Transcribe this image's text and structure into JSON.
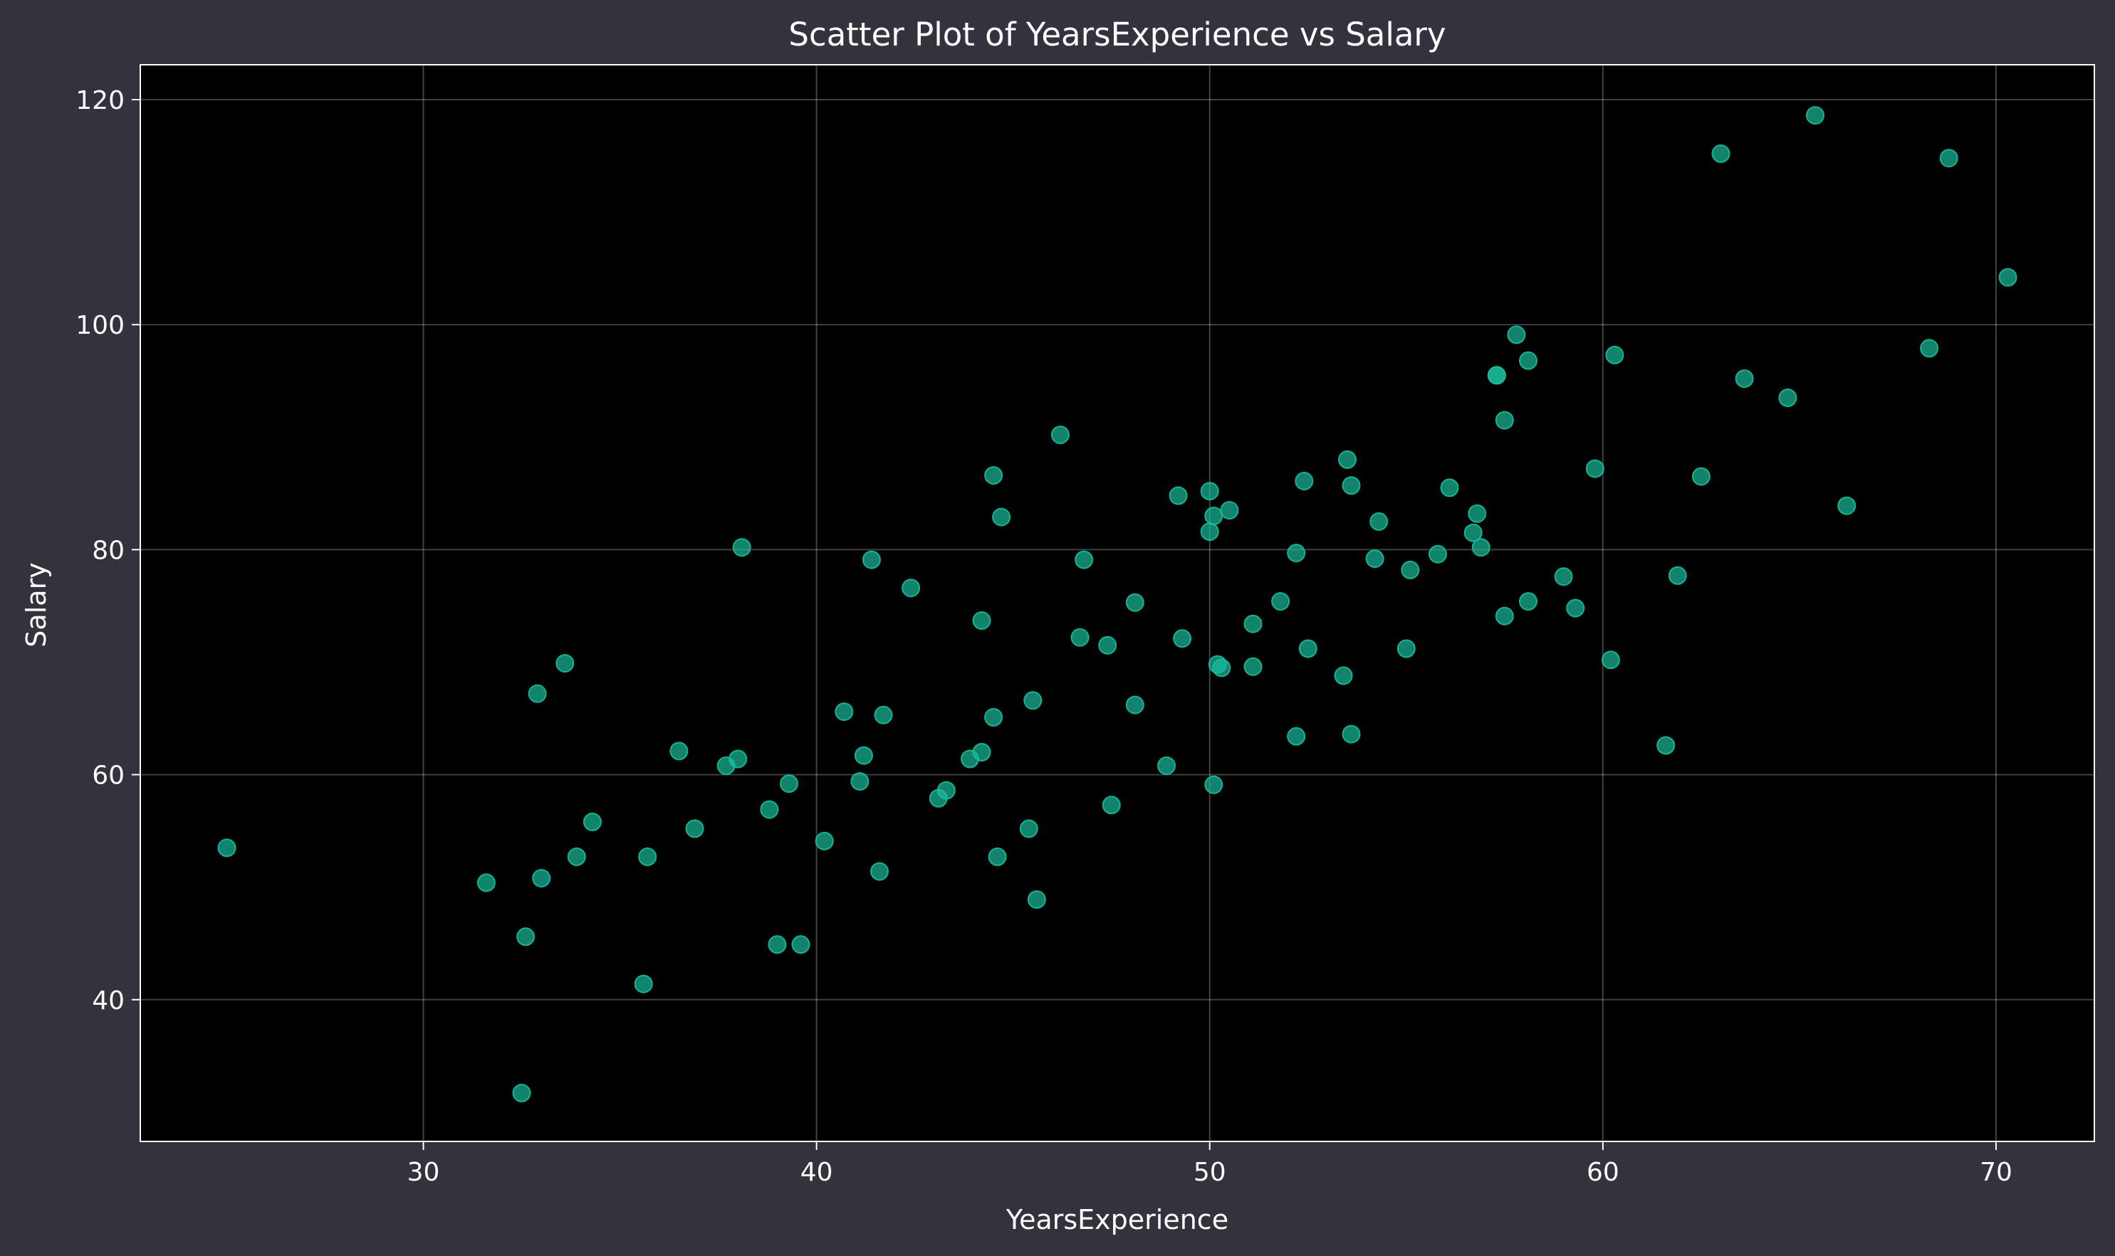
{
  "chart_data": {
    "type": "scatter",
    "title": "Scatter Plot of YearsExperience vs Salary",
    "xlabel": "YearsExperience",
    "ylabel": "Salary",
    "xlim": [
      22.8,
      72.5
    ],
    "ylim": [
      27.4,
      123.1
    ],
    "xticks": [
      30,
      40,
      50,
      60,
      70
    ],
    "yticks": [
      40,
      60,
      80,
      100,
      120
    ],
    "grid": true,
    "legend": "none",
    "colors": {
      "figure_bg": "#31343c",
      "plot_bg": "#000000",
      "axes": "#ffffff",
      "point": "#1abc9c"
    },
    "points": [
      [
        25.0,
        53.5
      ],
      [
        31.6,
        50.4
      ],
      [
        32.5,
        31.7
      ],
      [
        32.6,
        45.6
      ],
      [
        32.9,
        67.2
      ],
      [
        33.0,
        50.8
      ],
      [
        33.6,
        69.9
      ],
      [
        33.9,
        52.7
      ],
      [
        34.3,
        55.8
      ],
      [
        35.6,
        41.4
      ],
      [
        35.7,
        52.7
      ],
      [
        36.5,
        62.1
      ],
      [
        36.9,
        55.2
      ],
      [
        37.7,
        60.8
      ],
      [
        38.0,
        61.4
      ],
      [
        38.1,
        80.2
      ],
      [
        38.8,
        56.9
      ],
      [
        39.0,
        44.9
      ],
      [
        39.3,
        59.2
      ],
      [
        39.6,
        44.9
      ],
      [
        40.2,
        54.1
      ],
      [
        40.7,
        65.6
      ],
      [
        41.1,
        59.4
      ],
      [
        41.2,
        61.7
      ],
      [
        41.4,
        79.1
      ],
      [
        41.6,
        51.4
      ],
      [
        41.7,
        65.3
      ],
      [
        42.4,
        76.6
      ],
      [
        43.1,
        57.9
      ],
      [
        43.3,
        58.6
      ],
      [
        43.9,
        61.4
      ],
      [
        44.2,
        62.0
      ],
      [
        44.2,
        73.7
      ],
      [
        44.5,
        65.1
      ],
      [
        44.5,
        86.6
      ],
      [
        44.6,
        52.7
      ],
      [
        44.7,
        82.9
      ],
      [
        45.4,
        55.2
      ],
      [
        45.5,
        66.6
      ],
      [
        45.6,
        48.9
      ],
      [
        46.2,
        90.2
      ],
      [
        46.7,
        72.2
      ],
      [
        46.8,
        79.1
      ],
      [
        47.4,
        71.5
      ],
      [
        47.5,
        57.3
      ],
      [
        48.1,
        75.3
      ],
      [
        48.1,
        66.2
      ],
      [
        48.9,
        60.8
      ],
      [
        49.2,
        84.8
      ],
      [
        49.3,
        72.1
      ],
      [
        50.0,
        85.2
      ],
      [
        50.1,
        83.0
      ],
      [
        50.0,
        81.6
      ],
      [
        50.1,
        59.1
      ],
      [
        50.2,
        69.8
      ],
      [
        50.3,
        69.5
      ],
      [
        50.5,
        83.5
      ],
      [
        51.1,
        73.4
      ],
      [
        51.1,
        69.6
      ],
      [
        51.8,
        75.4
      ],
      [
        52.2,
        63.4
      ],
      [
        52.2,
        79.7
      ],
      [
        52.4,
        86.1
      ],
      [
        52.5,
        71.2
      ],
      [
        53.4,
        68.8
      ],
      [
        53.5,
        88.0
      ],
      [
        53.6,
        63.6
      ],
      [
        53.6,
        85.7
      ],
      [
        54.2,
        79.2
      ],
      [
        54.3,
        82.5
      ],
      [
        55.0,
        71.2
      ],
      [
        55.1,
        78.2
      ],
      [
        55.8,
        79.6
      ],
      [
        56.1,
        85.5
      ],
      [
        56.7,
        81.5
      ],
      [
        56.8,
        83.2
      ],
      [
        56.9,
        80.2
      ],
      [
        57.3,
        95.5
      ],
      [
        57.3,
        95.5
      ],
      [
        57.5,
        74.1
      ],
      [
        57.5,
        91.5
      ],
      [
        57.8,
        99.1
      ],
      [
        58.1,
        75.4
      ],
      [
        58.1,
        96.8
      ],
      [
        59.0,
        77.6
      ],
      [
        59.3,
        74.8
      ],
      [
        59.8,
        87.2
      ],
      [
        60.2,
        70.2
      ],
      [
        60.3,
        97.3
      ],
      [
        61.6,
        62.6
      ],
      [
        61.9,
        77.7
      ],
      [
        62.5,
        86.5
      ],
      [
        63.0,
        115.2
      ],
      [
        63.6,
        95.2
      ],
      [
        64.7,
        93.5
      ],
      [
        65.4,
        118.6
      ],
      [
        66.2,
        83.9
      ],
      [
        68.3,
        97.9
      ],
      [
        68.8,
        114.8
      ],
      [
        70.3,
        104.2
      ]
    ]
  }
}
